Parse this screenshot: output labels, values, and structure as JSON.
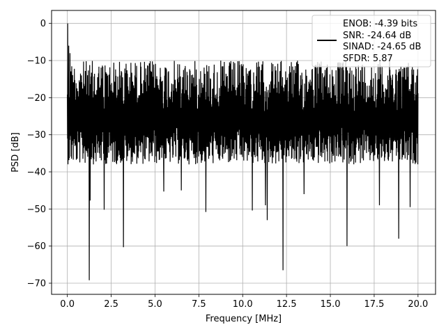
{
  "chart_data": {
    "type": "line",
    "title": "",
    "xlabel": "Frequency [MHz]",
    "ylabel": "PSD [dB]",
    "xlim": [
      -0.9,
      21.0
    ],
    "ylim": [
      -73,
      3.5
    ],
    "x_ticks": [
      {
        "value": 0.0,
        "label": "0.0"
      },
      {
        "value": 2.5,
        "label": "2.5"
      },
      {
        "value": 5.0,
        "label": "5.0"
      },
      {
        "value": 7.5,
        "label": "7.5"
      },
      {
        "value": 10.0,
        "label": "10.0"
      },
      {
        "value": 12.5,
        "label": "12.5"
      },
      {
        "value": 15.0,
        "label": "15.0"
      },
      {
        "value": 17.5,
        "label": "17.5"
      },
      {
        "value": 20.0,
        "label": "20.0"
      }
    ],
    "y_ticks": [
      {
        "value": 0,
        "label": "0"
      },
      {
        "value": -10,
        "label": "−10"
      },
      {
        "value": -20,
        "label": "−20"
      },
      {
        "value": -30,
        "label": "−30"
      },
      {
        "value": -40,
        "label": "−40"
      },
      {
        "value": -50,
        "label": "−50"
      },
      {
        "value": -60,
        "label": "−60"
      },
      {
        "value": -70,
        "label": "−70"
      }
    ],
    "grid": true,
    "legend_position": "top-right",
    "legend_lines": [
      "ENOB: -4.39 bits",
      "SNR: -24.64 dB",
      "SINAD: -24.65 dB",
      "SFDR: 5.87"
    ],
    "series": [
      {
        "color": "#000000",
        "x_range": [
          0.0,
          20.0
        ],
        "noise_band_db": [
          -36,
          -10
        ],
        "peaks": [
          {
            "x": 0.02,
            "y": 0.0
          },
          {
            "x": 0.08,
            "y": -6
          },
          {
            "x": 0.15,
            "y": -8
          }
        ],
        "dips": [
          {
            "x": 1.25,
            "y": -69.2
          },
          {
            "x": 3.2,
            "y": -60.3
          },
          {
            "x": 12.3,
            "y": -66.5
          },
          {
            "x": 15.95,
            "y": -60
          },
          {
            "x": 18.9,
            "y": -58
          },
          {
            "x": 11.4,
            "y": -53
          },
          {
            "x": 10.55,
            "y": -50.4
          },
          {
            "x": 7.9,
            "y": -50.8
          },
          {
            "x": 2.1,
            "y": -50.2
          },
          {
            "x": 17.8,
            "y": -49
          },
          {
            "x": 19.55,
            "y": -49.5
          },
          {
            "x": 11.3,
            "y": -49
          },
          {
            "x": 13.5,
            "y": -46
          },
          {
            "x": 6.5,
            "y": -45
          },
          {
            "x": 5.5,
            "y": -45.3
          },
          {
            "x": 1.3,
            "y": -47.7
          }
        ]
      }
    ]
  }
}
